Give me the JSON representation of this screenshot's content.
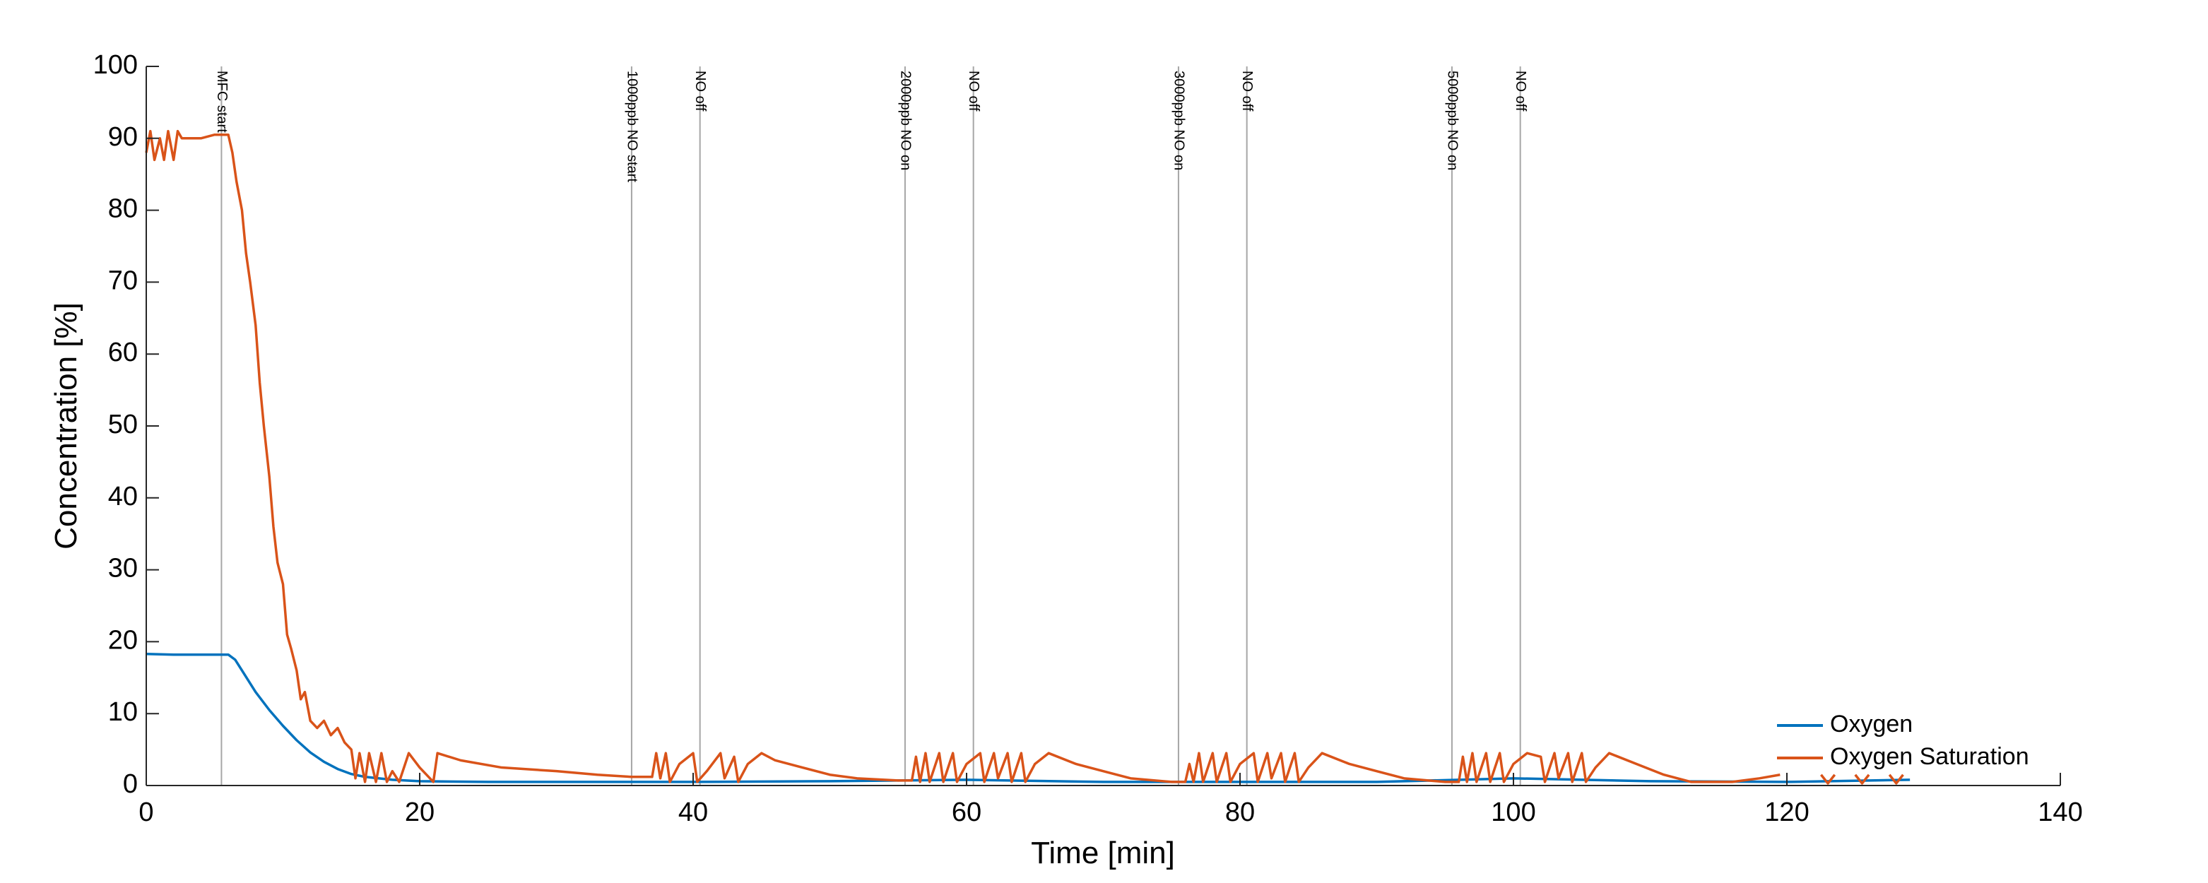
{
  "chart_data": {
    "type": "line",
    "xlabel": "Time [min]",
    "ylabel": "Concentration [%]",
    "xlim": [
      0,
      140
    ],
    "xticks": [
      0,
      20,
      40,
      60,
      80,
      100,
      120,
      140
    ],
    "ylim": [
      0,
      100
    ],
    "yticks": [
      0,
      10,
      20,
      30,
      40,
      50,
      60,
      70,
      80,
      90,
      100
    ],
    "legend": "lower right",
    "annotations": [
      {
        "x": 5.5,
        "label": "MFC start"
      },
      {
        "x": 35.5,
        "label": "1000ppb NO start"
      },
      {
        "x": 40.5,
        "label": "NO off"
      },
      {
        "x": 55.5,
        "label": "2000ppb NO on"
      },
      {
        "x": 60.5,
        "label": "NO off"
      },
      {
        "x": 75.5,
        "label": "3000ppb NO on"
      },
      {
        "x": 80.5,
        "label": "NO off"
      },
      {
        "x": 95.5,
        "label": "5000ppb NO on"
      },
      {
        "x": 100.5,
        "label": "NO off"
      }
    ],
    "series": [
      {
        "name": "Oxygen",
        "color": "#0072bd",
        "x": [
          0,
          2,
          4,
          6,
          6.5,
          7,
          8,
          9,
          10,
          11,
          12,
          13,
          14,
          15,
          16,
          18,
          20,
          25,
          30,
          40,
          50,
          60,
          70,
          80,
          90,
          100,
          110,
          120,
          129
        ],
        "values": [
          18.3,
          18.2,
          18.2,
          18.2,
          17.5,
          16,
          13,
          10.5,
          8.3,
          6.3,
          4.6,
          3.3,
          2.3,
          1.6,
          1.2,
          0.8,
          0.6,
          0.5,
          0.5,
          0.5,
          0.6,
          0.8,
          0.5,
          0.5,
          0.5,
          1.0,
          0.6,
          0.5,
          0.8
        ]
      },
      {
        "name": "Oxygen Saturation",
        "color": "#d95319",
        "x": [
          0,
          0.3,
          0.6,
          1,
          1.3,
          1.6,
          2,
          2.3,
          2.6,
          3,
          4,
          5,
          6,
          6.3,
          6.6,
          7,
          7.3,
          7.6,
          8,
          8.3,
          8.6,
          9,
          9.3,
          9.6,
          10,
          10.3,
          10.6,
          11,
          11.3,
          11.6,
          12,
          12.5,
          13,
          13.5,
          14,
          14.5,
          15,
          15.3,
          15.6,
          16,
          16.3,
          16.8,
          17.2,
          17.6,
          18,
          18.5,
          19.2,
          20,
          21,
          21.3,
          23,
          26,
          30,
          33,
          35.5,
          37,
          37.3,
          37.6,
          38,
          38.3,
          39,
          40,
          40.3,
          41,
          42,
          42.3,
          43,
          43.3,
          44,
          45,
          46,
          48,
          50,
          52,
          55,
          56,
          56.3,
          56.6,
          57,
          57.3,
          58,
          58.3,
          59,
          59.3,
          60,
          61,
          61.3,
          62,
          62.3,
          63,
          63.3,
          64,
          64.3,
          65,
          66,
          68,
          70,
          72,
          75,
          76,
          76.3,
          76.6,
          77,
          77.3,
          78,
          78.3,
          79,
          79.3,
          80,
          81,
          81.3,
          82,
          82.3,
          83,
          83.3,
          84,
          84.3,
          85,
          86,
          88,
          90,
          92,
          95,
          96,
          96.3,
          96.6,
          97,
          97.3,
          98,
          98.3,
          99,
          99.3,
          100,
          101,
          102,
          102.3,
          103,
          103.3,
          104,
          104.3,
          105,
          105.3,
          106,
          107,
          109,
          111,
          113,
          116,
          118,
          119.5,
          121,
          122.5,
          123,
          123.5,
          124.2,
          125,
          125.5,
          126,
          126.8,
          127.5,
          128,
          128.5
        ],
        "values": [
          88,
          91,
          87,
          90,
          87,
          91,
          87,
          91,
          90,
          90,
          90,
          90.5,
          90.5,
          88,
          84,
          80,
          74,
          70,
          64,
          56,
          50,
          43,
          36,
          31,
          28,
          21,
          19,
          16,
          12,
          13,
          9,
          8,
          9,
          7,
          8,
          6,
          5,
          1,
          4.5,
          0.5,
          4.5,
          0.5,
          4.5,
          0.5,
          2,
          0.5,
          4.5,
          2.5,
          0.5,
          4.5,
          3.5,
          2.5,
          2,
          1.5,
          1.2,
          1.2,
          4.5,
          1,
          4.5,
          0.5,
          3,
          4.5,
          0.5,
          2,
          4.5,
          1,
          4,
          0.5,
          3,
          4.5,
          3.5,
          2.5,
          1.5,
          1,
          0.7,
          0.7,
          4,
          0.5,
          4.5,
          0.5,
          4.5,
          0.5,
          4.5,
          0.5,
          3,
          4.5,
          0.5,
          4.5,
          1,
          4.5,
          0.5,
          4.5,
          0.5,
          3,
          4.5,
          3,
          2,
          1,
          0.5,
          0.5,
          3,
          0.5,
          4.5,
          0.5,
          4.5,
          0.5,
          4.5,
          0.5,
          3,
          4.5,
          0.5,
          4.5,
          1,
          4.5,
          0.5,
          4.5,
          0.5,
          2.5,
          4.5,
          3,
          2,
          1,
          0.5,
          0.5,
          4,
          0.5,
          4.5,
          0.5,
          4.5,
          0.5,
          4.5,
          0.5,
          3,
          4.5,
          4,
          0.5,
          4.5,
          1,
          4.5,
          0.5,
          4.5,
          0.5,
          2.5,
          4.5,
          3,
          1.5,
          0.5,
          0.5,
          1,
          1.5,
          null,
          1.5,
          0.3,
          1.5,
          null,
          1.5,
          0.3,
          1.5,
          null,
          1.5,
          0.3,
          1.5
        ]
      }
    ]
  }
}
